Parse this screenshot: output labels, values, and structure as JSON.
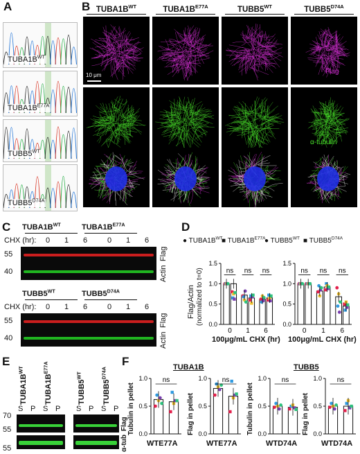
{
  "panels": {
    "A": "A",
    "B": "B",
    "C": "C",
    "D": "D",
    "E": "E",
    "F": "F"
  },
  "panelA": {
    "chromatograms": [
      {
        "gene": "TUBA1B",
        "sup": "WT"
      },
      {
        "gene": "TUBA1B",
        "sup": "E77A"
      },
      {
        "gene": "TUBB5",
        "sup": "WT"
      },
      {
        "gene": "TUBB5",
        "sup": "D74A"
      }
    ]
  },
  "panelB": {
    "columns": [
      {
        "gene": "TUBA1B",
        "sup": "WT"
      },
      {
        "gene": "TUBA1B",
        "sup": "E77A"
      },
      {
        "gene": "TUBB5",
        "sup": "WT"
      },
      {
        "gene": "TUBB5",
        "sup": "D74A"
      }
    ],
    "row_labels": [
      "Flag",
      "α-tubulin"
    ],
    "scale": "10 μm",
    "colors": {
      "flag": "#d62fd6",
      "tubulin": "#48e02a",
      "nucleus": "#1f2fe6"
    }
  },
  "panelC": {
    "top_headers": [
      {
        "gene": "TUBA1B",
        "sup": "WT"
      },
      {
        "gene": "TUBA1B",
        "sup": "E77A"
      }
    ],
    "bottom_headers": [
      {
        "gene": "TUBB5",
        "sup": "WT"
      },
      {
        "gene": "TUBB5",
        "sup": "D74A"
      }
    ],
    "chx_label": "CHX (hr):",
    "timepoints": [
      "0",
      "1",
      "6",
      "0",
      "1",
      "6"
    ],
    "mw": [
      "55",
      "40"
    ],
    "band_labels": [
      "Flag",
      "Actin"
    ]
  },
  "panelD": {
    "legend_left": [
      {
        "gene": "TUBA1B",
        "sup": "WT"
      },
      {
        "gene": "TUBA1B",
        "sup": "E77A"
      }
    ],
    "legend_right": [
      {
        "gene": "TUBB5",
        "sup": "WT"
      },
      {
        "gene": "TUBB5",
        "sup": "D74A"
      }
    ],
    "ylabel_1": "Flag/Actin",
    "ylabel_2": "(normalized to t=0)",
    "xlabel": "100μg/mL CHX (hr)",
    "ns": "ns"
  },
  "panelE": {
    "headers": [
      {
        "gene": "TUBA1B",
        "sup": "WT"
      },
      {
        "gene": "TUBA1B",
        "sup": "E77A"
      },
      {
        "gene": "TUBB5",
        "sup": "WT"
      },
      {
        "gene": "TUBB5",
        "sup": "D74A"
      }
    ],
    "sp": [
      "S",
      "P",
      "S",
      "P",
      "S",
      "P",
      "S",
      "P"
    ],
    "mw": [
      "70",
      "55",
      "55"
    ],
    "band_labels": [
      "Flag",
      "α-tub"
    ]
  },
  "panelF": {
    "group_titles": [
      "TUBA1B",
      "TUBB5"
    ],
    "ylabels": [
      "Tubulin in pellet",
      "Flag in pellet",
      "Tubulin in pellet",
      "Flag in pellet"
    ],
    "xlabels": [
      "WTE77A",
      "WTE77A",
      "WTD74A",
      "WTD74A"
    ],
    "ns": "ns"
  },
  "chart_data": [
    {
      "type": "bar",
      "title": "",
      "ylabel": "Flag/Actin (normalized to t=0)",
      "xlabel": "100μg/mL CHX (hr)",
      "categories": [
        "0",
        "1",
        "6"
      ],
      "ylim": [
        0,
        1.5
      ],
      "yticks": [
        "0.0",
        "0.5",
        "1.0",
        "1.5"
      ],
      "series": [
        {
          "name": "TUBA1B WT",
          "values": [
            1.0,
            0.72,
            0.62
          ]
        },
        {
          "name": "TUBA1B E77A",
          "values": [
            1.0,
            0.65,
            0.65
          ]
        }
      ],
      "points": [
        [
          [
            1.0,
            1.0,
            1.0,
            1.0,
            1.0
          ],
          [
            0.8,
            0.65,
            0.75,
            0.62,
            0.78
          ]
        ],
        [
          [
            0.7,
            0.68,
            0.6,
            0.82,
            0.55
          ],
          [
            0.6,
            0.7,
            0.52,
            0.68,
            0.72
          ]
        ],
        [
          [
            0.62,
            0.55,
            0.7,
            0.58,
            0.66
          ],
          [
            0.6,
            0.72,
            0.64,
            0.58,
            0.7
          ]
        ]
      ],
      "significance": [
        "ns",
        "ns",
        "ns"
      ]
    },
    {
      "type": "bar",
      "title": "",
      "ylabel": "",
      "xlabel": "100μg/mL CHX (hr)",
      "categories": [
        "0",
        "1",
        "6"
      ],
      "ylim": [
        0,
        1.5
      ],
      "yticks": [
        "0.0",
        "0.5",
        "1.0",
        "1.5"
      ],
      "series": [
        {
          "name": "TUBB5 WT",
          "values": [
            1.0,
            0.82,
            0.68
          ]
        },
        {
          "name": "TUBB5 D74A",
          "values": [
            1.0,
            0.92,
            0.45
          ]
        }
      ],
      "points": [
        [
          [
            1.0,
            1.0,
            1.0,
            1.0,
            1.0
          ],
          [
            1.0,
            1.0,
            1.0,
            1.0,
            1.0
          ]
        ],
        [
          [
            0.8,
            0.95,
            0.7,
            0.85,
            0.9
          ],
          [
            0.85,
            1.0,
            0.95,
            0.88,
            0.92
          ]
        ],
        [
          [
            0.9,
            0.45,
            0.75,
            0.3,
            0.55
          ],
          [
            0.5,
            0.35,
            0.55,
            0.42,
            0.48
          ]
        ]
      ],
      "significance": [
        "ns",
        "ns",
        "ns"
      ]
    },
    {
      "type": "bar",
      "title": "TUBA1B",
      "ylabel": "Tubulin in pellet",
      "categories": [
        "WT",
        "E77A"
      ],
      "ylim": [
        0,
        1.0
      ],
      "yticks": [
        "0.0",
        "0.5",
        "1.0"
      ],
      "values": [
        0.62,
        0.58
      ],
      "points": [
        [
          0.5,
          0.7,
          0.6,
          0.65,
          0.55
        ],
        [
          0.4,
          0.75,
          0.55,
          0.6,
          0.6
        ]
      ],
      "significance": "ns"
    },
    {
      "type": "bar",
      "title": "TUBA1B",
      "ylabel": "Flag in pellet",
      "categories": [
        "WT",
        "E77A"
      ],
      "ylim": [
        0,
        1.0
      ],
      "yticks": [
        "0.0",
        "0.5",
        "1.0"
      ],
      "values": [
        0.82,
        0.68
      ],
      "points": [
        [
          0.7,
          0.9,
          0.85,
          0.8,
          0.88
        ],
        [
          0.4,
          0.95,
          0.65,
          0.7,
          0.72
        ]
      ],
      "significance": "ns"
    },
    {
      "type": "bar",
      "title": "TUBB5",
      "ylabel": "Tubulin in pellet",
      "categories": [
        "WT",
        "D74A"
      ],
      "ylim": [
        0,
        1.0
      ],
      "yticks": [
        "0.0",
        "0.5",
        "1.0"
      ],
      "values": [
        0.5,
        0.48
      ],
      "points": [
        [
          0.48,
          0.55,
          0.5,
          0.45,
          0.52
        ],
        [
          0.45,
          0.5,
          0.52,
          0.47,
          0.44
        ]
      ],
      "significance": "ns"
    },
    {
      "type": "bar",
      "title": "TUBB5",
      "ylabel": "Flag in pellet",
      "categories": [
        "WT",
        "D74A"
      ],
      "ylim": [
        0,
        1.0
      ],
      "yticks": [
        "0.0",
        "0.5",
        "1.0"
      ],
      "values": [
        0.5,
        0.5
      ],
      "points": [
        [
          0.48,
          0.55,
          0.5,
          0.45,
          0.52
        ],
        [
          0.42,
          0.55,
          0.6,
          0.47,
          0.5
        ]
      ],
      "significance": "ns"
    }
  ]
}
